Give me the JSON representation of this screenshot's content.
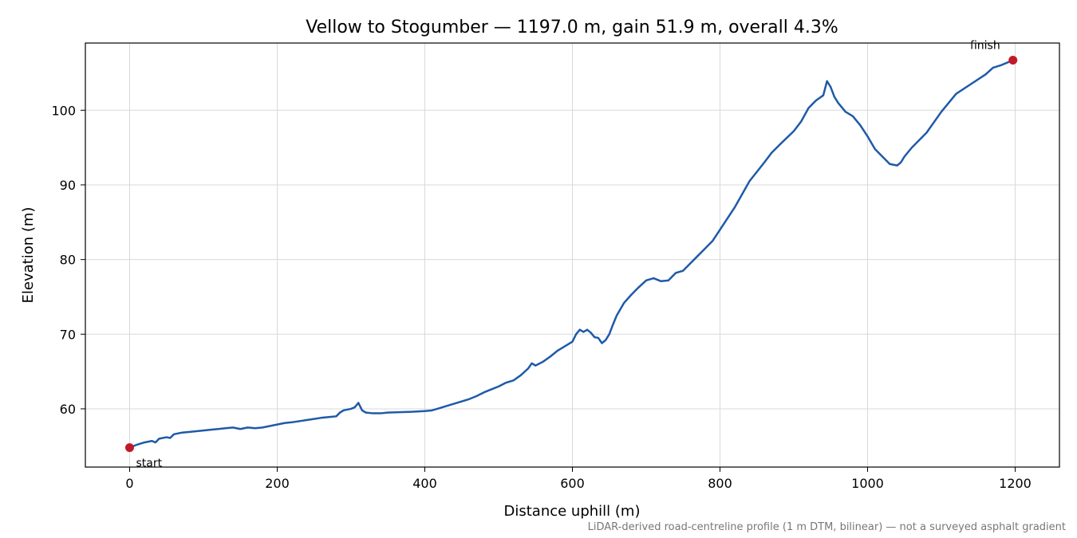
{
  "chart_data": {
    "type": "line",
    "title": "Vellow to Stogumber — 1197.0 m, gain 51.9 m, overall 4.3%",
    "xlabel": "Distance uphill (m)",
    "ylabel": "Elevation (m)",
    "caption": "LiDAR-derived road-centreline profile (1 m DTM, bilinear) — not a surveyed asphalt gradient",
    "xlim": [
      -60,
      1260
    ],
    "ylim": [
      52.2,
      109
    ],
    "xticks": [
      0,
      200,
      400,
      600,
      800,
      1000,
      1200
    ],
    "yticks": [
      60,
      70,
      80,
      90,
      100
    ],
    "grid": true,
    "line_color": "#1f5aa8",
    "marker_color": "#c0192a",
    "series": [
      {
        "x": [
          0,
          10,
          20,
          30,
          35,
          40,
          50,
          55,
          60,
          70,
          80,
          100,
          110,
          120,
          130,
          140,
          150,
          160,
          170,
          180,
          190,
          200,
          210,
          220,
          240,
          260,
          270,
          280,
          285,
          290,
          300,
          305,
          310,
          315,
          320,
          330,
          340,
          350,
          380,
          400,
          410,
          420,
          440,
          460,
          470,
          480,
          490,
          500,
          510,
          520,
          530,
          540,
          545,
          550,
          560,
          570,
          580,
          600,
          605,
          610,
          615,
          620,
          625,
          630,
          635,
          640,
          645,
          650,
          655,
          660,
          670,
          680,
          690,
          700,
          710,
          720,
          730,
          740,
          750,
          760,
          770,
          780,
          790,
          800,
          820,
          840,
          860,
          870,
          880,
          900,
          910,
          920,
          930,
          940,
          945,
          950,
          955,
          960,
          970,
          980,
          990,
          1000,
          1010,
          1020,
          1030,
          1040,
          1045,
          1050,
          1060,
          1080,
          1100,
          1120,
          1140,
          1160,
          1170,
          1180,
          1197
        ],
        "y": [
          54.8,
          55.2,
          55.5,
          55.7,
          55.5,
          56.0,
          56.2,
          56.1,
          56.6,
          56.8,
          56.9,
          57.1,
          57.2,
          57.3,
          57.4,
          57.5,
          57.3,
          57.5,
          57.4,
          57.5,
          57.7,
          57.9,
          58.1,
          58.2,
          58.5,
          58.8,
          58.9,
          59.0,
          59.5,
          59.8,
          60.0,
          60.2,
          60.8,
          59.8,
          59.5,
          59.4,
          59.4,
          59.5,
          59.6,
          59.7,
          59.8,
          60.1,
          60.7,
          61.3,
          61.7,
          62.2,
          62.6,
          63.0,
          63.5,
          63.8,
          64.5,
          65.4,
          66.1,
          65.8,
          66.3,
          67.0,
          67.8,
          69.0,
          70.0,
          70.6,
          70.3,
          70.6,
          70.2,
          69.6,
          69.5,
          68.8,
          69.2,
          70.0,
          71.3,
          72.5,
          74.2,
          75.3,
          76.3,
          77.2,
          77.5,
          77.1,
          77.2,
          78.2,
          78.5,
          79.5,
          80.5,
          81.5,
          82.5,
          84.0,
          87.0,
          90.5,
          93.0,
          94.3,
          95.3,
          97.2,
          98.5,
          100.3,
          101.3,
          102.0,
          103.9,
          103.1,
          101.8,
          101.0,
          99.8,
          99.2,
          98.0,
          96.5,
          94.8,
          93.8,
          92.8,
          92.6,
          93.0,
          93.8,
          95.0,
          97.0,
          99.8,
          102.2,
          103.5,
          104.8,
          105.7,
          106.0,
          106.7
        ]
      }
    ],
    "annotations": [
      {
        "text": "start",
        "x": 0,
        "y": 54.8
      },
      {
        "text": "finish",
        "x": 1197,
        "y": 106.7
      }
    ]
  }
}
